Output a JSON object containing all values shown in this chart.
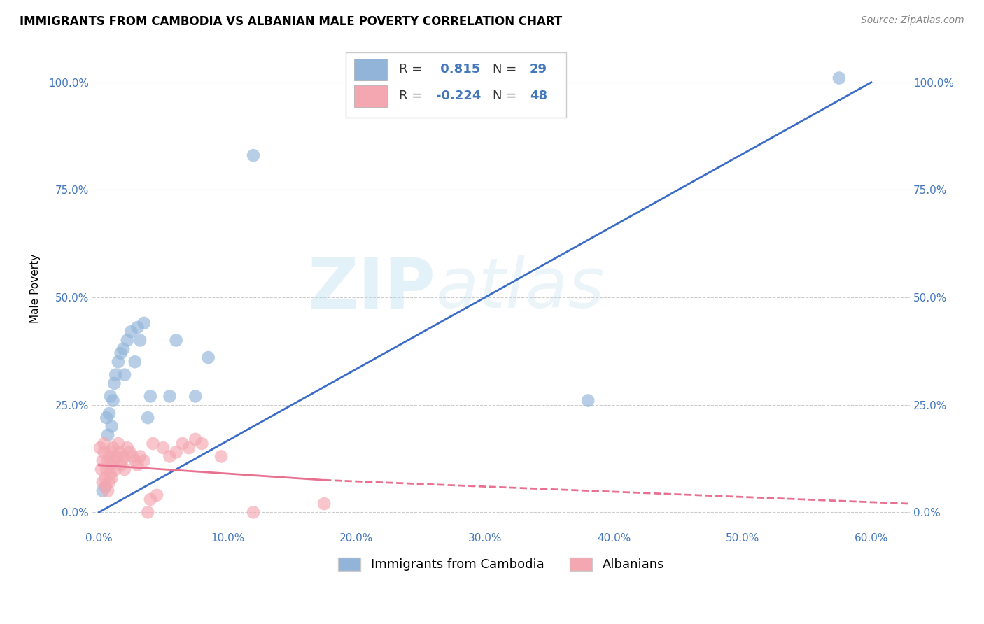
{
  "title": "IMMIGRANTS FROM CAMBODIA VS ALBANIAN MALE POVERTY CORRELATION CHART",
  "source": "Source: ZipAtlas.com",
  "xlabel_ticks": [
    "0.0%",
    "10.0%",
    "20.0%",
    "30.0%",
    "40.0%",
    "50.0%",
    "60.0%"
  ],
  "xlabel_vals": [
    0,
    10,
    20,
    30,
    40,
    50,
    60
  ],
  "ylabel_ticks": [
    "0.0%",
    "25.0%",
    "50.0%",
    "75.0%",
    "100.0%"
  ],
  "ylabel_vals": [
    0,
    25,
    50,
    75,
    100
  ],
  "xlim": [
    -0.5,
    63
  ],
  "ylim": [
    -4,
    108
  ],
  "ylabel": "Male Poverty",
  "legend_label1": "Immigrants from Cambodia",
  "legend_label2": "Albanians",
  "R1": 0.815,
  "N1": 29,
  "R2": -0.224,
  "N2": 48,
  "blue_color": "#92B4D9",
  "pink_color": "#F4A7B0",
  "blue_line_color": "#3B6CC7",
  "pink_line_color": "#E87090",
  "watermark_zip": "ZIP",
  "watermark_atlas": "atlas",
  "cambodia_x": [
    0.3,
    0.5,
    0.6,
    0.7,
    0.8,
    0.9,
    1.0,
    1.1,
    1.2,
    1.3,
    1.5,
    1.7,
    1.9,
    2.0,
    2.2,
    2.5,
    2.8,
    3.0,
    3.2,
    3.5,
    3.8,
    4.0,
    5.5,
    6.0,
    7.5,
    8.5,
    12.0,
    38.0,
    57.5
  ],
  "cambodia_y": [
    5,
    6,
    22,
    18,
    23,
    27,
    20,
    26,
    30,
    32,
    35,
    37,
    38,
    32,
    40,
    42,
    35,
    43,
    40,
    44,
    22,
    27,
    27,
    40,
    27,
    36,
    83,
    26,
    101
  ],
  "albanian_x": [
    0.1,
    0.2,
    0.3,
    0.3,
    0.4,
    0.4,
    0.5,
    0.5,
    0.6,
    0.7,
    0.7,
    0.8,
    0.8,
    0.9,
    0.9,
    1.0,
    1.0,
    1.1,
    1.2,
    1.3,
    1.4,
    1.5,
    1.6,
    1.7,
    1.8,
    1.9,
    2.0,
    2.2,
    2.4,
    2.6,
    2.8,
    3.0,
    3.2,
    3.5,
    3.8,
    4.0,
    4.2,
    4.5,
    5.0,
    5.5,
    6.0,
    6.5,
    7.0,
    7.5,
    8.0,
    9.5,
    12.0,
    17.5
  ],
  "albanian_y": [
    15,
    10,
    12,
    7,
    14,
    16,
    8,
    6,
    10,
    12,
    5,
    7,
    13,
    9,
    11,
    8,
    14,
    15,
    12,
    10,
    13,
    16,
    14,
    11,
    12,
    13,
    10,
    15,
    14,
    13,
    12,
    11,
    13,
    12,
    0,
    3,
    16,
    4,
    15,
    13,
    14,
    16,
    15,
    17,
    16,
    13,
    0,
    2
  ],
  "cam_line_x0": 0,
  "cam_line_y0": 0,
  "cam_line_x1": 60,
  "cam_line_y1": 100,
  "alb_solid_x0": 0,
  "alb_solid_y0": 11,
  "alb_solid_x1": 17.5,
  "alb_solid_y1": 7.5,
  "alb_dash_x0": 17.5,
  "alb_dash_y0": 7.5,
  "alb_dash_x1": 63,
  "alb_dash_y1": 2.0
}
